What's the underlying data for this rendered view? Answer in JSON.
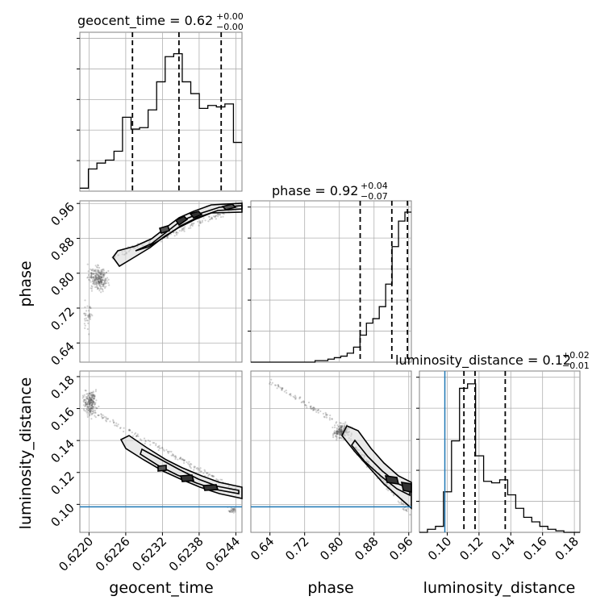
{
  "chart_data": {
    "type": "corner",
    "parameters": [
      "geocent_time",
      "phase",
      "luminosity_distance"
    ],
    "titles": {
      "geocent_time": {
        "prefix": "geocent_time = 0.62",
        "sup": "+0.00",
        "sub": "−0.00"
      },
      "phase": {
        "prefix": "phase = 0.92",
        "sup": "+0.04",
        "sub": "−0.07"
      },
      "luminosity_distance": {
        "prefix": "luminosity_distance = 0.12",
        "sup": "+0.02",
        "sub": "−0.01"
      }
    },
    "axis_labels": {
      "geocent_time": "geocent_time",
      "phase": "phase",
      "luminosity_distance": "luminosity_distance"
    },
    "ticks": {
      "geocent_time": [
        "0.6220",
        "0.6226",
        "0.6232",
        "0.6238",
        "0.6244"
      ],
      "phase": [
        "0.64",
        "0.72",
        "0.80",
        "0.88",
        "0.96"
      ],
      "luminosity_distance": [
        "0.10",
        "0.12",
        "0.14",
        "0.16",
        "0.18"
      ]
    },
    "ranges": {
      "geocent_time": [
        0.62185,
        0.6245
      ],
      "phase": [
        0.596,
        0.966
      ],
      "luminosity_distance": [
        0.0825,
        0.1835
      ]
    },
    "quantiles": {
      "geocent_time": [
        0.62271,
        0.62347,
        0.62416
      ],
      "phase": [
        0.848,
        0.921,
        0.957
      ],
      "luminosity_distance": [
        0.1105,
        0.1175,
        0.1365
      ]
    },
    "truth": {
      "luminosity_distance": 0.0985
    },
    "truth_color": "#1f77b4",
    "histograms": {
      "geocent_time": [
        0.02,
        0.15,
        0.19,
        0.21,
        0.27,
        0.5,
        0.42,
        0.43,
        0.55,
        0.74,
        0.91,
        0.93,
        0.74,
        0.66,
        0.56,
        0.58,
        0.57,
        0.59,
        0.33
      ],
      "phase": [
        0.0,
        0.0,
        0.0,
        0.0,
        0.0,
        0.0,
        0.0,
        0.0,
        0.0,
        0.0,
        0.01,
        0.01,
        0.02,
        0.03,
        0.04,
        0.06,
        0.1,
        0.18,
        0.26,
        0.29,
        0.37,
        0.52,
        0.77,
        0.94,
        1.0
      ],
      "luminosity_distance": [
        0.0,
        0.02,
        0.04,
        0.27,
        0.61,
        0.96,
        0.99,
        0.51,
        0.34,
        0.33,
        0.35,
        0.25,
        0.16,
        0.1,
        0.07,
        0.04,
        0.02,
        0.01,
        0.0,
        0.0
      ]
    },
    "grid": true
  }
}
